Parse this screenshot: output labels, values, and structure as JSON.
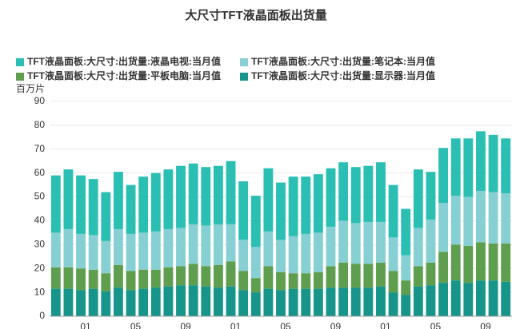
{
  "chart_data": {
    "type": "stacked-bar",
    "title": "大尺寸TFT液晶面板出货量",
    "y_label": "百万片",
    "categories": [
      null,
      null,
      "01",
      null,
      null,
      null,
      "05",
      null,
      null,
      null,
      "09",
      null,
      null,
      null,
      "01",
      null,
      null,
      null,
      "05",
      null,
      null,
      null,
      "09",
      null,
      null,
      null,
      "01",
      null,
      null,
      null,
      "05",
      null,
      null,
      null,
      "09",
      null,
      null
    ],
    "series": [
      {
        "name": "TFT液晶面板:大尺寸:出货量:液晶电视:当月值",
        "color": "#2bbfb3",
        "values": [
          24,
          25,
          24.5,
          23.5,
          20.5,
          24,
          20.5,
          23.5,
          24.5,
          25,
          26,
          25.5,
          24.5,
          24.5,
          26.5,
          24.5,
          21.5,
          26.5,
          24,
          25,
          24,
          24.5,
          24.5,
          24.5,
          23.5,
          23.5,
          25,
          22,
          19.5,
          24.5,
          20,
          23,
          24,
          24.5,
          25,
          24,
          23
        ]
      },
      {
        "name": "TFT液晶面板:大尺寸:出货量:笔记本:当月值",
        "color": "#86cfd3",
        "values": [
          14.5,
          16,
          14.5,
          14.5,
          13.5,
          15,
          15.5,
          15.5,
          16,
          16,
          16,
          16.5,
          17,
          17,
          15.5,
          13,
          13,
          14.5,
          13.5,
          15.5,
          16.5,
          16.5,
          16.5,
          17.5,
          17,
          17.5,
          17,
          14,
          10.5,
          16,
          18,
          20.5,
          20.5,
          20.5,
          21.5,
          21.5,
          21
        ]
      },
      {
        "name": "TFT液晶面板:大尺寸:出货量:平板电脑:当月值",
        "color": "#5e9e4e",
        "values": [
          9,
          9,
          9,
          8,
          7.5,
          9.5,
          8,
          8,
          7.5,
          8,
          8,
          9,
          8.5,
          9.5,
          10.5,
          8,
          6,
          9.5,
          7.5,
          6.5,
          6.5,
          7,
          9,
          10.5,
          10,
          10,
          10,
          9,
          6,
          8.5,
          9.5,
          13,
          15,
          15.5,
          16,
          15.5,
          16
        ]
      },
      {
        "name": "TFT液晶面板:大尺寸:出货量:显示器:当月值",
        "color": "#17958a",
        "values": [
          11.5,
          11.5,
          11,
          11.5,
          10.5,
          12,
          11,
          11.5,
          12,
          12.5,
          13,
          13,
          12.5,
          12,
          12.5,
          11,
          10,
          11.5,
          11,
          11.5,
          11.5,
          11.5,
          12,
          12,
          12,
          12,
          12.5,
          10,
          9,
          12.5,
          13,
          14,
          15,
          14,
          15,
          15,
          14.5
        ]
      }
    ],
    "ylim": [
      0,
      90
    ],
    "yticks": [
      0,
      10,
      20,
      30,
      40,
      50,
      60,
      70,
      80,
      90
    ],
    "grid": true
  }
}
